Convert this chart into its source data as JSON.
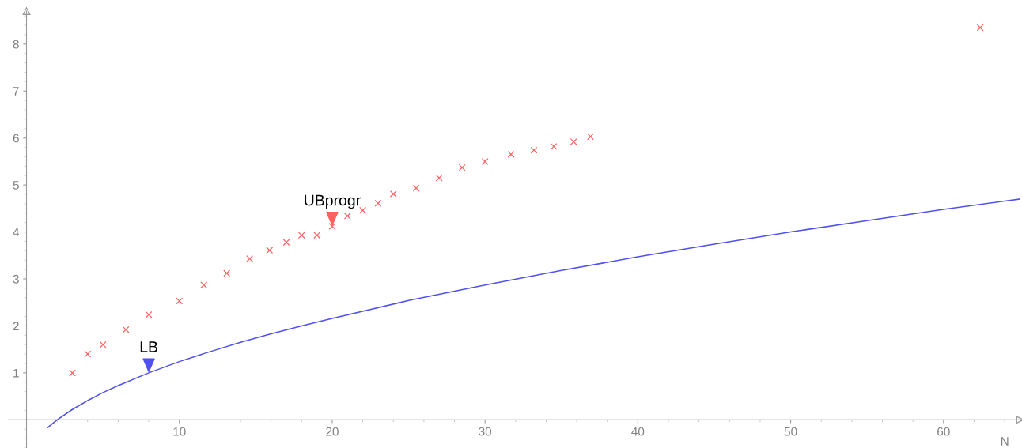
{
  "chart_data": {
    "type": "line",
    "xlabel": "N",
    "xlim": [
      -1.2,
      65
    ],
    "ylim": [
      -0.6,
      8.7
    ],
    "xticks": [
      10,
      20,
      30,
      40,
      50,
      60
    ],
    "yticks": [
      1,
      2,
      3,
      4,
      5,
      6,
      7,
      8
    ],
    "grid": false,
    "legend": false,
    "series": [
      {
        "color": "#5050f0",
        "x": [
          1.4,
          2,
          3,
          4,
          5,
          6,
          8,
          10,
          12,
          14,
          16,
          18,
          20,
          25,
          30,
          35,
          40,
          45,
          50,
          55,
          60,
          65
        ],
        "values": [
          -0.16,
          0,
          0.22,
          0.41,
          0.58,
          0.73,
          1.0,
          1.24,
          1.45,
          1.65,
          1.83,
          2.0,
          2.16,
          2.54,
          2.87,
          3.18,
          3.47,
          3.74,
          4.0,
          4.24,
          4.48,
          4.7
        ],
        "marker": "none"
      },
      {
        "type": "scatter",
        "color": "#ff6060",
        "marker": "cross",
        "x": [
          3,
          4,
          5,
          6.5,
          8,
          10,
          11.6,
          13.1,
          14.6,
          15.9,
          17,
          18,
          19,
          20,
          21,
          22,
          23,
          24,
          25.5,
          27,
          28.5,
          30,
          31.7,
          33.2,
          34.5,
          35.8,
          36.9,
          62.4
        ],
        "values": [
          1.0,
          1.4,
          1.6,
          1.92,
          2.24,
          2.53,
          2.87,
          3.12,
          3.43,
          3.61,
          3.78,
          3.93,
          3.93,
          4.12,
          4.34,
          4.46,
          4.61,
          4.81,
          4.93,
          5.15,
          5.37,
          5.5,
          5.65,
          5.74,
          5.82,
          5.92,
          6.03,
          8.35
        ]
      }
    ],
    "annotations": [
      {
        "text": "LB",
        "x": 8,
        "y": 1.0
      },
      {
        "text": "UBprogr",
        "x": 20,
        "y": 4.12
      }
    ]
  }
}
